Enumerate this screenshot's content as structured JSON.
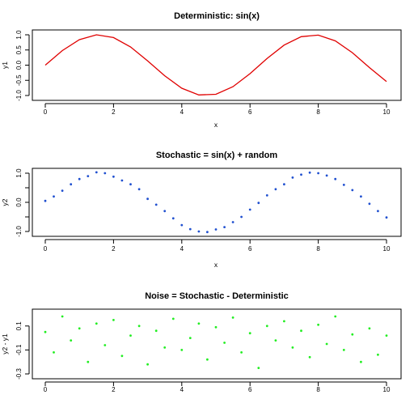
{
  "chart_data": [
    {
      "type": "line",
      "title": "Deterministic:  sin(x)",
      "xlabel": "x",
      "ylabel": "y1",
      "xlim": [
        0,
        10
      ],
      "ylim": [
        -1.0,
        1.0
      ],
      "xticks": [
        0,
        2,
        4,
        6,
        8,
        10
      ],
      "yticks": [
        -1.0,
        -0.5,
        0.0,
        0.5,
        1.0
      ],
      "xtick_labels": [
        "0",
        "2",
        "4",
        "6",
        "8",
        "10"
      ],
      "ytick_labels": [
        "-1.0",
        "-0.5",
        "0.0",
        "0.5",
        "1.0"
      ],
      "grid": false,
      "series": [
        {
          "color": "#e00000",
          "x": [
            0.0,
            0.5,
            1.0,
            1.5,
            2.0,
            2.5,
            3.0,
            3.5,
            4.0,
            4.5,
            5.0,
            5.5,
            6.0,
            6.5,
            7.0,
            7.5,
            8.0,
            8.5,
            9.0,
            9.5,
            10.0
          ],
          "y": [
            0.0,
            0.48,
            0.84,
            1.0,
            0.91,
            0.6,
            0.14,
            -0.35,
            -0.76,
            -0.98,
            -0.96,
            -0.71,
            -0.28,
            0.22,
            0.66,
            0.94,
            0.99,
            0.8,
            0.41,
            -0.08,
            -0.54
          ]
        }
      ]
    },
    {
      "type": "scatter",
      "title": "Stochastic =  sin(x) + random",
      "xlabel": "x",
      "ylabel": "y2",
      "xlim": [
        0,
        10
      ],
      "ylim": [
        -1.0,
        1.0
      ],
      "xticks": [
        0,
        2,
        4,
        6,
        8,
        10
      ],
      "yticks": [
        -1.0,
        -0.5,
        0.0,
        0.5,
        1.0
      ],
      "xtick_labels": [
        "0",
        "2",
        "4",
        "6",
        "8",
        "10"
      ],
      "ytick_labels": [
        "-1.0",
        "",
        "0.0",
        "",
        "1.0"
      ],
      "grid": false,
      "series": [
        {
          "color": "#2050d0",
          "x": [
            0.0,
            0.25,
            0.5,
            0.75,
            1.0,
            1.25,
            1.5,
            1.75,
            2.0,
            2.25,
            2.5,
            2.75,
            3.0,
            3.25,
            3.5,
            3.75,
            4.0,
            4.25,
            4.5,
            4.75,
            5.0,
            5.25,
            5.5,
            5.75,
            6.0,
            6.25,
            6.5,
            6.75,
            7.0,
            7.25,
            7.5,
            7.75,
            8.0,
            8.25,
            8.5,
            8.75,
            9.0,
            9.25,
            9.5,
            9.75,
            10.0
          ],
          "y": [
            0.05,
            0.2,
            0.4,
            0.62,
            0.8,
            0.9,
            1.03,
            1.0,
            0.88,
            0.75,
            0.62,
            0.45,
            0.12,
            -0.08,
            -0.3,
            -0.55,
            -0.78,
            -0.92,
            -1.0,
            -1.02,
            -0.93,
            -0.85,
            -0.68,
            -0.5,
            -0.25,
            -0.02,
            0.24,
            0.45,
            0.62,
            0.85,
            0.95,
            1.02,
            1.0,
            0.92,
            0.8,
            0.6,
            0.42,
            0.2,
            -0.05,
            -0.3,
            -0.52
          ]
        }
      ]
    },
    {
      "type": "scatter",
      "title": "Noise =  Stochastic - Deterministic",
      "xlabel": "",
      "ylabel": "y2 - y1",
      "xlim": [
        0,
        10
      ],
      "ylim": [
        -0.3,
        0.2
      ],
      "xticks": [
        0,
        2,
        4,
        6,
        8,
        10
      ],
      "yticks": [
        -0.3,
        -0.1,
        0.1
      ],
      "xtick_labels": [
        "0",
        "2",
        "4",
        "6",
        "8",
        "10"
      ],
      "ytick_labels": [
        "-0.3",
        "-0.1",
        "0.1"
      ],
      "grid": false,
      "series": [
        {
          "color": "#22ee22",
          "x": [
            0.0,
            0.25,
            0.5,
            0.75,
            1.0,
            1.25,
            1.5,
            1.75,
            2.0,
            2.25,
            2.5,
            2.75,
            3.0,
            3.25,
            3.5,
            3.75,
            4.0,
            4.25,
            4.5,
            4.75,
            5.0,
            5.25,
            5.5,
            5.75,
            6.0,
            6.25,
            6.5,
            6.75,
            7.0,
            7.25,
            7.5,
            7.75,
            8.0,
            8.25,
            8.5,
            8.75,
            9.0,
            9.25,
            9.5,
            9.75,
            10.0
          ],
          "y": [
            0.05,
            -0.12,
            0.18,
            -0.02,
            0.08,
            -0.2,
            0.12,
            -0.06,
            0.15,
            -0.15,
            0.02,
            0.1,
            -0.22,
            0.06,
            -0.08,
            0.16,
            -0.1,
            0.0,
            0.12,
            -0.18,
            0.09,
            -0.04,
            0.17,
            -0.12,
            0.04,
            -0.25,
            0.1,
            -0.02,
            0.14,
            -0.08,
            0.06,
            -0.16,
            0.11,
            -0.05,
            0.18,
            -0.1,
            0.03,
            -0.2,
            0.08,
            -0.14,
            0.02
          ]
        }
      ]
    }
  ]
}
